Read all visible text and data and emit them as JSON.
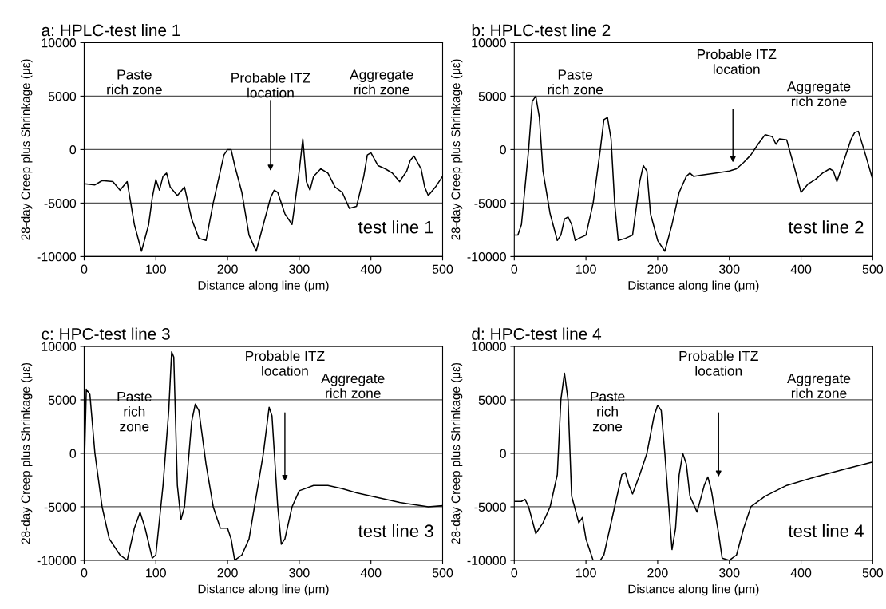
{
  "chart_data": [
    {
      "type": "line",
      "title": "a: HPLC-test line 1",
      "xlabel": "Distance along line (μm)",
      "ylabel": "28-day Creep plus Shrinkage (με)",
      "xlim": [
        0,
        500
      ],
      "xticks": [
        0,
        100,
        200,
        300,
        400,
        500
      ],
      "ylim": [
        -10000,
        10000
      ],
      "yticks": [
        -10000,
        -5000,
        0,
        5000,
        10000
      ],
      "grid": "y",
      "line_style": "solid",
      "series": [
        {
          "color": "#000000",
          "x": [
            0,
            15,
            25,
            40,
            50,
            60,
            70,
            80,
            90,
            95,
            100,
            105,
            110,
            115,
            120,
            130,
            140,
            150,
            160,
            170,
            180,
            190,
            195,
            200,
            205,
            210,
            220,
            230,
            240,
            250,
            260,
            265,
            270,
            280,
            290,
            300,
            305,
            310,
            315,
            320,
            330,
            340,
            350,
            360,
            370,
            380,
            390,
            395,
            400,
            410,
            420,
            430,
            440,
            450,
            455,
            460,
            470,
            475,
            480,
            490,
            500
          ],
          "values": [
            -3200,
            -3300,
            -2900,
            -3000,
            -3800,
            -3000,
            -7000,
            -9500,
            -7000,
            -4500,
            -2800,
            -3800,
            -2500,
            -2200,
            -3500,
            -4300,
            -3500,
            -6500,
            -8300,
            -8500,
            -5000,
            -2000,
            -500,
            0,
            0,
            -1500,
            -4000,
            -8000,
            -9500,
            -7000,
            -4500,
            -3800,
            -4000,
            -6000,
            -7000,
            -2000,
            1000,
            -3000,
            -3800,
            -2500,
            -1800,
            -2200,
            -3500,
            -4000,
            -5500,
            -5300,
            -2500,
            -500,
            -300,
            -1500,
            -1800,
            -2200,
            -3000,
            -2000,
            -1000,
            -600,
            -1800,
            -3500,
            -4300,
            -3500,
            -2500
          ]
        }
      ],
      "annotations": [
        "Paste\nrich zone",
        "Aggregate\nrich zone",
        "test line 1",
        "Probable ITZ\nlocation"
      ]
    },
    {
      "type": "line",
      "title": "b: HPLC-test line 2",
      "xlabel": "Distance along line (μm)",
      "ylabel": "28-day Creep plus Shrinkage (με)",
      "xlim": [
        0,
        500
      ],
      "xticks": [
        0,
        100,
        200,
        300,
        400,
        500
      ],
      "ylim": [
        -10000,
        10000
      ],
      "yticks": [
        -10000,
        -5000,
        0,
        5000,
        10000
      ],
      "grid": "y",
      "line_style": "solid",
      "series": [
        {
          "color": "#000000",
          "x": [
            0,
            5,
            10,
            20,
            25,
            30,
            35,
            40,
            50,
            60,
            65,
            70,
            75,
            80,
            85,
            90,
            100,
            110,
            120,
            125,
            130,
            135,
            140,
            145,
            155,
            165,
            175,
            180,
            185,
            190,
            200,
            210,
            220,
            230,
            240,
            245,
            250,
            260,
            280,
            300,
            310,
            320,
            330,
            340,
            350,
            360,
            365,
            370,
            380,
            390,
            400,
            410,
            420,
            430,
            440,
            445,
            450,
            460,
            470,
            475,
            480,
            490,
            500
          ],
          "values": [
            -8000,
            -8000,
            -7000,
            0,
            4500,
            5000,
            3000,
            -2000,
            -6000,
            -8500,
            -8000,
            -6500,
            -6300,
            -7000,
            -8500,
            -8300,
            -8000,
            -5000,
            0,
            2800,
            3000,
            1000,
            -5000,
            -8500,
            -8300,
            -8000,
            -3000,
            -1500,
            -2000,
            -6000,
            -8500,
            -9500,
            -7000,
            -4000,
            -2500,
            -2200,
            -2500,
            -2400,
            -2200,
            -2000,
            -1800,
            -1200,
            -500,
            500,
            1400,
            1200,
            500,
            1000,
            900,
            -1500,
            -4000,
            -3200,
            -2800,
            -2200,
            -1800,
            -2000,
            -3000,
            -1000,
            1000,
            1600,
            1700,
            -500,
            -2800
          ]
        }
      ],
      "annotations": [
        "Paste\nrich zone",
        "Aggregate\nrich zone",
        "test line 2",
        "Probable ITZ\nlocation"
      ]
    },
    {
      "type": "line",
      "title": "c: HPC-test line 3",
      "xlabel": "Distance along line (μm)",
      "ylabel": "28-day Creep plus Shrinkage (με)",
      "xlim": [
        0,
        500
      ],
      "xticks": [
        0,
        100,
        200,
        300,
        400,
        500
      ],
      "ylim": [
        -10000,
        10000
      ],
      "yticks": [
        -10000,
        -5000,
        0,
        5000,
        10000
      ],
      "grid": "y",
      "line_style": "solid",
      "series": [
        {
          "color": "#000000",
          "x": [
            0,
            3,
            8,
            15,
            25,
            35,
            50,
            60,
            70,
            78,
            85,
            95,
            100,
            110,
            118,
            122,
            125,
            130,
            135,
            140,
            150,
            155,
            160,
            170,
            180,
            190,
            200,
            205,
            210,
            220,
            230,
            240,
            250,
            258,
            262,
            270,
            275,
            280,
            290,
            300,
            320,
            340,
            360,
            380,
            400,
            420,
            440,
            460,
            480,
            500
          ],
          "values": [
            -2000,
            6000,
            5500,
            0,
            -5000,
            -8000,
            -9500,
            -10000,
            -7000,
            -5500,
            -7000,
            -9800,
            -9500,
            -3000,
            4000,
            9500,
            9000,
            -3000,
            -6200,
            -5000,
            3000,
            4600,
            4000,
            -1000,
            -5000,
            -7000,
            -7000,
            -8000,
            -10000,
            -9500,
            -8000,
            -4000,
            0,
            4300,
            3500,
            -5000,
            -8500,
            -8000,
            -5000,
            -3500,
            -3000,
            -3000,
            -3300,
            -3700,
            -4000,
            -4300,
            -4600,
            -4800,
            -5000,
            -4900
          ]
        }
      ],
      "annotations": [
        "Paste\nrich\nzone",
        "Aggregate\nrich zone",
        "test line 3",
        "Probable ITZ\nlocation"
      ]
    },
    {
      "type": "line",
      "title": "d: HPC-test line 4",
      "xlabel": "Distance along line (μm)",
      "ylabel": "28-day Creep plus Shrinkage (με)",
      "xlim": [
        0,
        500
      ],
      "xticks": [
        0,
        100,
        200,
        300,
        400,
        500
      ],
      "ylim": [
        -10000,
        10000
      ],
      "yticks": [
        -10000,
        -5000,
        0,
        5000,
        10000
      ],
      "grid": "y",
      "line_style": "solid",
      "series": [
        {
          "color": "#000000",
          "x": [
            0,
            10,
            15,
            20,
            30,
            40,
            50,
            60,
            65,
            70,
            75,
            80,
            90,
            95,
            100,
            110,
            120,
            125,
            130,
            140,
            150,
            155,
            160,
            165,
            175,
            185,
            195,
            200,
            205,
            210,
            220,
            225,
            230,
            235,
            240,
            245,
            255,
            265,
            270,
            275,
            285,
            290,
            300,
            310,
            320,
            330,
            350,
            380,
            420,
            460,
            500
          ],
          "values": [
            -4500,
            -4500,
            -4300,
            -5000,
            -7500,
            -6500,
            -5000,
            -2000,
            5000,
            7500,
            5000,
            -4000,
            -6500,
            -6000,
            -8000,
            -10000,
            -10000,
            -9500,
            -8000,
            -5000,
            -2000,
            -1800,
            -3000,
            -3800,
            -2000,
            0,
            3500,
            4500,
            4000,
            0,
            -9000,
            -7000,
            -2000,
            0,
            -1000,
            -4000,
            -5500,
            -3000,
            -2200,
            -3500,
            -7500,
            -9800,
            -10000,
            -9500,
            -7000,
            -5000,
            -4000,
            -3000,
            -2200,
            -1500,
            -800
          ]
        }
      ],
      "annotations": [
        "Paste\nrich\nzone",
        "Aggregate\nrich zone",
        "test line 4",
        "Probable ITZ\nlocation"
      ]
    }
  ]
}
